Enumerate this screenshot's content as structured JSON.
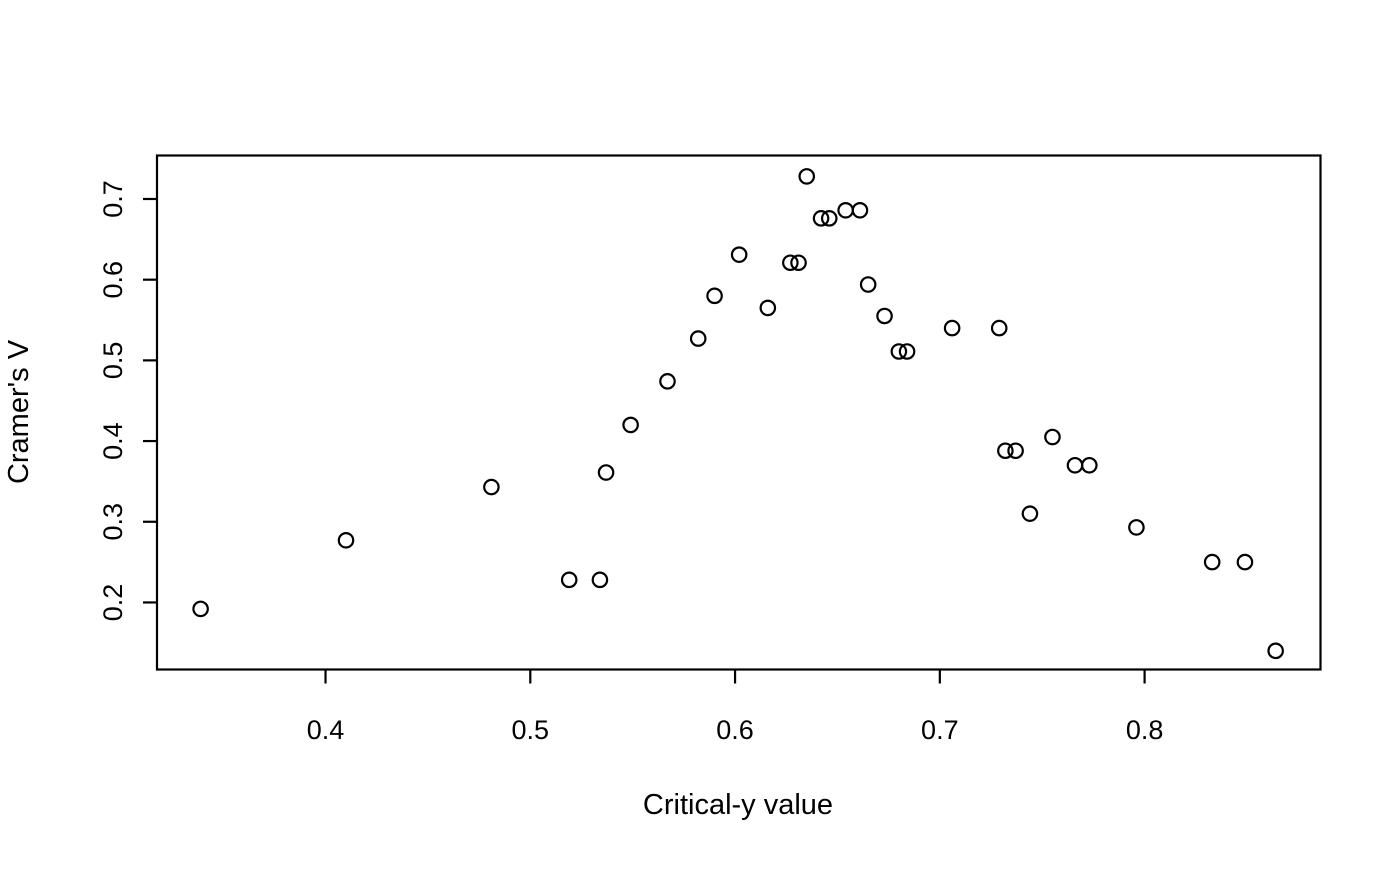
{
  "figure": {
    "background": "#ffffff",
    "stroke_color": "#000000"
  },
  "chart_data": {
    "type": "scatter",
    "title": "",
    "xlabel": "Critical-y value",
    "ylabel": "Cramer's V",
    "xlim": [
      0.3177,
      0.8859
    ],
    "ylim": [
      0.1169,
      0.7539
    ],
    "x_ticks": [
      0.4,
      0.5,
      0.6,
      0.7,
      0.8
    ],
    "y_ticks": [
      0.2,
      0.3,
      0.4,
      0.5,
      0.6,
      0.7
    ],
    "grid": false,
    "legend": null,
    "marker": "open-circle",
    "points": [
      [
        0.339,
        0.192
      ],
      [
        0.41,
        0.277
      ],
      [
        0.481,
        0.343
      ],
      [
        0.519,
        0.228
      ],
      [
        0.534,
        0.228
      ],
      [
        0.537,
        0.361
      ],
      [
        0.549,
        0.42
      ],
      [
        0.567,
        0.474
      ],
      [
        0.582,
        0.527
      ],
      [
        0.59,
        0.58
      ],
      [
        0.602,
        0.631
      ],
      [
        0.616,
        0.565
      ],
      [
        0.627,
        0.621
      ],
      [
        0.631,
        0.621
      ],
      [
        0.635,
        0.728
      ],
      [
        0.642,
        0.676
      ],
      [
        0.646,
        0.676
      ],
      [
        0.654,
        0.686
      ],
      [
        0.661,
        0.686
      ],
      [
        0.665,
        0.594
      ],
      [
        0.673,
        0.555
      ],
      [
        0.68,
        0.511
      ],
      [
        0.684,
        0.511
      ],
      [
        0.706,
        0.54
      ],
      [
        0.729,
        0.54
      ],
      [
        0.732,
        0.388
      ],
      [
        0.737,
        0.388
      ],
      [
        0.744,
        0.31
      ],
      [
        0.755,
        0.405
      ],
      [
        0.766,
        0.37
      ],
      [
        0.773,
        0.37
      ],
      [
        0.796,
        0.293
      ],
      [
        0.833,
        0.25
      ],
      [
        0.849,
        0.25
      ],
      [
        0.864,
        0.14
      ]
    ]
  }
}
